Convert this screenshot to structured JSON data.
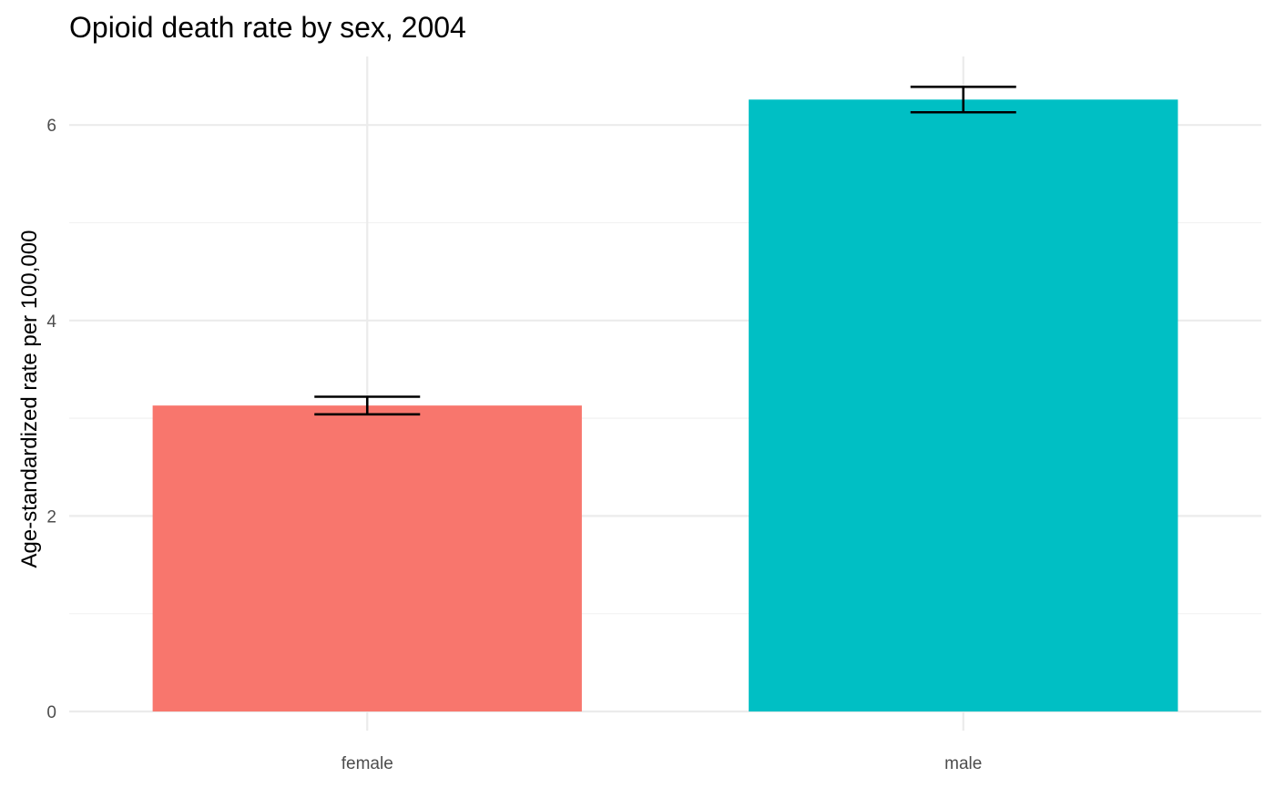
{
  "chart_data": {
    "type": "bar",
    "title": "Opioid death rate by sex, 2004",
    "xlabel": "",
    "ylabel": "Age-standardized rate per 100,000",
    "categories": [
      "female",
      "male"
    ],
    "values": [
      3.13,
      6.26
    ],
    "error_low": [
      3.04,
      6.13
    ],
    "error_high": [
      3.22,
      6.39
    ],
    "colors": [
      "#F8766D",
      "#00BFC4"
    ],
    "ylim": [
      0,
      6.8
    ],
    "yticks": [
      0,
      2,
      4,
      6
    ],
    "ytick_labels": [
      "0",
      "2",
      "4",
      "6"
    ],
    "grid": true,
    "legend": "none"
  }
}
